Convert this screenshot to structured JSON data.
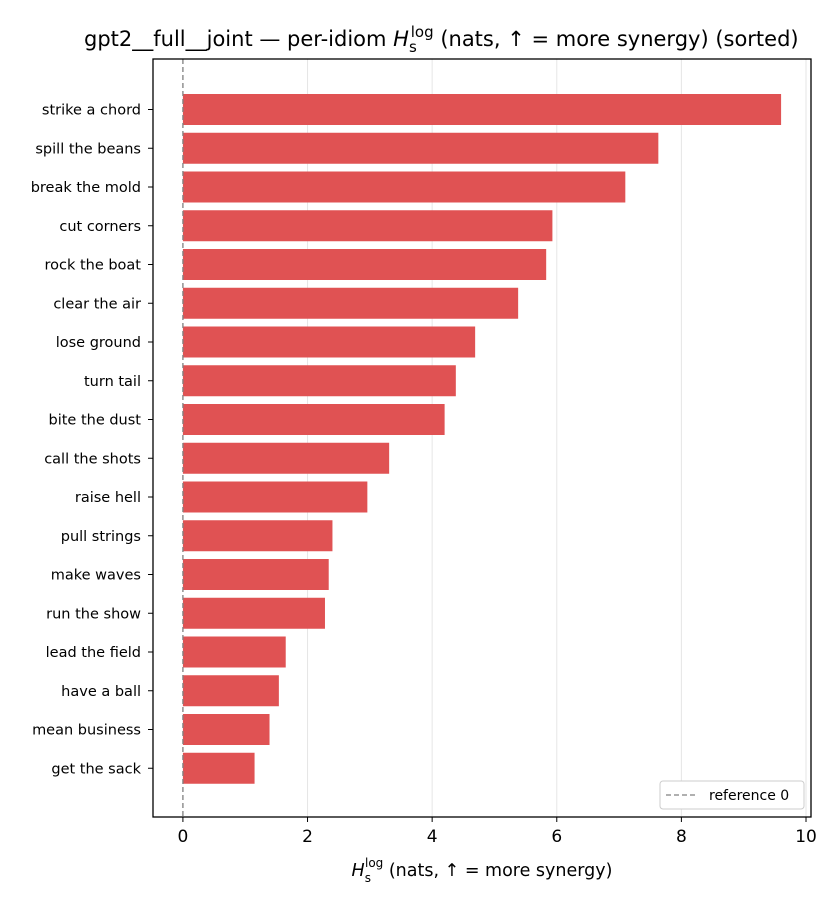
{
  "chart_data": {
    "type": "bar",
    "orientation": "horizontal",
    "title_parts": {
      "prefix": "gpt2__full__joint — per-idiom ",
      "symbol": "H",
      "sub": "s",
      "sup": "log",
      "suffix": " (nats, ↑ = more synergy) (sorted)"
    },
    "xlabel_parts": {
      "symbol": "H",
      "sub": "s",
      "sup": "log",
      "suffix": " (nats, ↑ = more synergy)"
    },
    "categories": [
      "strike a chord",
      "spill the beans",
      "break the mold",
      "cut corners",
      "rock the boat",
      "clear the air",
      "lose ground",
      "turn tail",
      "bite the dust",
      "call the shots",
      "raise hell",
      "pull strings",
      "make waves",
      "run the show",
      "lead the field",
      "have a ball",
      "mean business",
      "get the sack"
    ],
    "values": [
      9.6,
      7.63,
      7.1,
      5.93,
      5.83,
      5.38,
      4.69,
      4.38,
      4.2,
      3.31,
      2.96,
      2.4,
      2.34,
      2.28,
      1.65,
      1.54,
      1.39,
      1.15
    ],
    "xlim": [
      -0.48,
      10.08
    ],
    "xticks": [
      0,
      2,
      4,
      6,
      8,
      10
    ],
    "xtick_labels": [
      "0",
      "2",
      "4",
      "6",
      "8",
      "10"
    ],
    "grid": "x-axis only",
    "bar_color": "#e05253",
    "reference_line": {
      "value": 0,
      "style": "dashed",
      "color": "#808080",
      "label": "reference 0"
    },
    "legend_position": "lower-right"
  }
}
